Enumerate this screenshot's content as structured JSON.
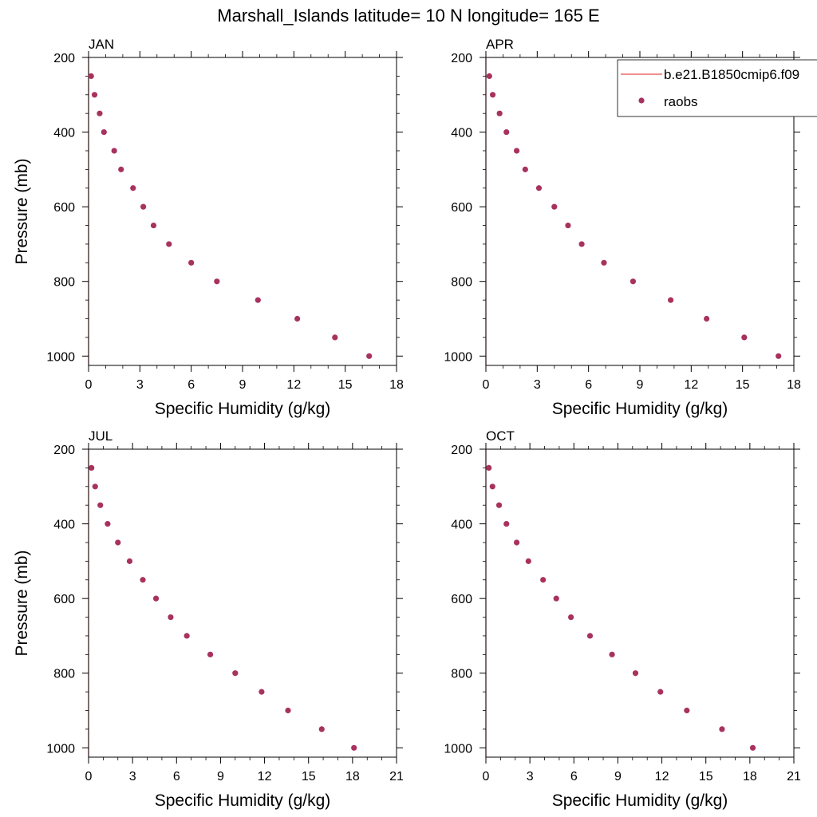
{
  "figure_title": "Marshall_Islands  latitude= 10 N longitude= 165 E",
  "colors": {
    "model_line": "#e8514f",
    "obs_marker": "#a8325e",
    "axis": "#000000"
  },
  "legend": {
    "model_label": "b.e21.B1850cmip6.f09",
    "obs_label": "raobs"
  },
  "chart_data": [
    {
      "type": "scatter",
      "title": "JAN",
      "xlabel": "Specific Humidity (g/kg)",
      "ylabel": "Pressure (mb)",
      "xlim": [
        0,
        18
      ],
      "ylim": [
        1025,
        200
      ],
      "xticks": [
        0,
        3,
        6,
        9,
        12,
        15,
        18
      ],
      "yticks": [
        200,
        400,
        600,
        800,
        1000
      ],
      "series": [
        {
          "name": "b.e21.B1850cmip6.f09",
          "kind": "line",
          "x": [
            0,
            0
          ],
          "y": [
            200,
            1025
          ]
        },
        {
          "name": "raobs",
          "kind": "marker",
          "pressure": [
            250,
            300,
            350,
            400,
            450,
            500,
            550,
            600,
            650,
            700,
            750,
            800,
            850,
            900,
            950,
            1000
          ],
          "values": [
            0.15,
            0.35,
            0.65,
            0.9,
            1.5,
            1.9,
            2.6,
            3.2,
            3.8,
            4.7,
            6.0,
            7.5,
            9.9,
            12.2,
            14.4,
            16.4
          ]
        }
      ]
    },
    {
      "type": "scatter",
      "title": "APR",
      "xlabel": "Specific Humidity (g/kg)",
      "ylabel": "",
      "xlim": [
        0,
        18
      ],
      "ylim": [
        1025,
        200
      ],
      "xticks": [
        0,
        3,
        6,
        9,
        12,
        15,
        18
      ],
      "yticks": [
        200,
        400,
        600,
        800,
        1000
      ],
      "series": [
        {
          "name": "b.e21.B1850cmip6.f09",
          "kind": "line",
          "x": [
            0,
            0
          ],
          "y": [
            200,
            1025
          ]
        },
        {
          "name": "raobs",
          "kind": "marker",
          "pressure": [
            250,
            300,
            350,
            400,
            450,
            500,
            550,
            600,
            650,
            700,
            750,
            800,
            850,
            900,
            950,
            1000
          ],
          "values": [
            0.2,
            0.4,
            0.8,
            1.2,
            1.8,
            2.3,
            3.1,
            4.0,
            4.8,
            5.6,
            6.9,
            8.6,
            10.8,
            12.9,
            15.1,
            17.1
          ]
        }
      ]
    },
    {
      "type": "scatter",
      "title": "JUL",
      "xlabel": "Specific Humidity (g/kg)",
      "ylabel": "Pressure (mb)",
      "xlim": [
        0,
        21
      ],
      "ylim": [
        1025,
        200
      ],
      "xticks": [
        0,
        3,
        6,
        9,
        12,
        15,
        18,
        21
      ],
      "yticks": [
        200,
        400,
        600,
        800,
        1000
      ],
      "series": [
        {
          "name": "b.e21.B1850cmip6.f09",
          "kind": "line",
          "x": [
            0,
            0
          ],
          "y": [
            200,
            1025
          ]
        },
        {
          "name": "raobs",
          "kind": "marker",
          "pressure": [
            250,
            300,
            350,
            400,
            450,
            500,
            550,
            600,
            650,
            700,
            750,
            800,
            850,
            900,
            950,
            1000
          ],
          "values": [
            0.2,
            0.45,
            0.8,
            1.3,
            2.0,
            2.8,
            3.7,
            4.6,
            5.6,
            6.7,
            8.3,
            10.0,
            11.8,
            13.6,
            15.9,
            18.1
          ]
        }
      ]
    },
    {
      "type": "scatter",
      "title": "OCT",
      "xlabel": "Specific Humidity (g/kg)",
      "ylabel": "",
      "xlim": [
        0,
        21
      ],
      "ylim": [
        1025,
        200
      ],
      "xticks": [
        0,
        3,
        6,
        9,
        12,
        15,
        18,
        21
      ],
      "yticks": [
        200,
        400,
        600,
        800,
        1000
      ],
      "series": [
        {
          "name": "b.e21.B1850cmip6.f09",
          "kind": "line",
          "x": [
            0,
            0
          ],
          "y": [
            200,
            1025
          ]
        },
        {
          "name": "raobs",
          "kind": "marker",
          "pressure": [
            250,
            300,
            350,
            400,
            450,
            500,
            550,
            600,
            650,
            700,
            750,
            800,
            850,
            900,
            950,
            1000
          ],
          "values": [
            0.2,
            0.45,
            0.9,
            1.4,
            2.1,
            2.9,
            3.9,
            4.8,
            5.8,
            7.1,
            8.6,
            10.2,
            11.9,
            13.7,
            16.1,
            18.2
          ]
        }
      ]
    }
  ]
}
